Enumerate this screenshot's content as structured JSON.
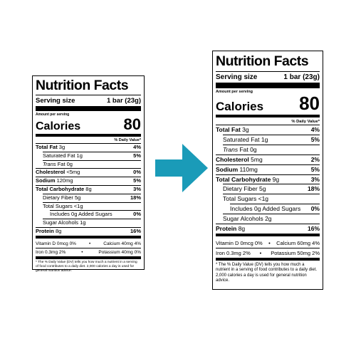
{
  "arrow_color": "#1a9bb8",
  "labels": {
    "old": {
      "title": "Nutrition Facts",
      "serving_label": "Serving size",
      "serving_value": "1 bar (23g)",
      "amount_per_serving": "Amount per serving",
      "calories_label": "Calories",
      "calories_value": "80",
      "dv_header": "% Daily Value*",
      "rows": [
        {
          "bold": "Total Fat",
          "amount": "3g",
          "pct": "4%"
        },
        {
          "bold": "",
          "amount": "Saturated Fat 1g",
          "pct": "5%"
        },
        {
          "italic": "Trans",
          "amount": "Fat 0g",
          "pct": ""
        },
        {
          "bold": "Cholesterol",
          "amount": "<5mg",
          "pct": "0%"
        },
        {
          "bold": "Sodium",
          "amount": "120mg",
          "pct": "5%"
        },
        {
          "bold": "Total Carbohydrate",
          "amount": "8g",
          "pct": "3%"
        },
        {
          "bold": "",
          "amount": "Dietary Fiber 5g",
          "pct": "18%"
        },
        {
          "bold": "",
          "amount": "Total Sugars <1g",
          "pct": ""
        },
        {
          "bold": "",
          "amount": "Includes 0g Added Sugars",
          "pct": "0%"
        },
        {
          "bold": "",
          "amount": "Sugar Alcohols 1g",
          "pct": ""
        },
        {
          "bold": "Protein",
          "amount": "8g",
          "pct": "16%"
        }
      ],
      "vitamins": [
        {
          "left": "Vitamin D 0mcg 0%",
          "right": "Calcium 40mg 4%"
        },
        {
          "left": "Iron 0.3mg 2%",
          "right": "Potassium 40mg 0%"
        }
      ],
      "footnote": "* The % Daily Value (DV) tells you how much a nutrient in a serving of food contributes to a daily diet. 2,000 calories a day is used for general nutrition advice."
    },
    "new": {
      "title": "Nutrition Facts",
      "serving_label": "Serving size",
      "serving_value": "1 bar (23g)",
      "amount_per_serving": "Amount per serving",
      "calories_label": "Calories",
      "calories_value": "80",
      "dv_header": "% Daily Value*",
      "rows": [
        {
          "bold": "Total Fat",
          "amount": "3g",
          "pct": "4%"
        },
        {
          "bold": "",
          "amount": "Saturated Fat 1g",
          "pct": "5%"
        },
        {
          "italic": "Trans",
          "amount": "Fat 0g",
          "pct": ""
        },
        {
          "bold": "Cholesterol",
          "amount": "5mg",
          "pct": "2%"
        },
        {
          "bold": "Sodium",
          "amount": "110mg",
          "pct": "5%"
        },
        {
          "bold": "Total Carbohydrate",
          "amount": "9g",
          "pct": "3%"
        },
        {
          "bold": "",
          "amount": "Dietary Fiber 5g",
          "pct": "18%"
        },
        {
          "bold": "",
          "amount": "Total Sugars <1g",
          "pct": ""
        },
        {
          "bold": "",
          "amount": "Includes 0g Added Sugars",
          "pct": "0%"
        },
        {
          "bold": "",
          "amount": "Sugar Alcohols 2g",
          "pct": ""
        },
        {
          "bold": "Protein",
          "amount": "8g",
          "pct": "16%"
        }
      ],
      "vitamins": [
        {
          "left": "Vitamin D 0mcg 0%",
          "right": "Calcium 60mg 4%"
        },
        {
          "left": "Iron 0.3mg 2%",
          "right": "Potassium 50mg 2%"
        }
      ],
      "footnote": "* The % Daily Value (DV) tells you how much a nutrient in a serving of food contributes to a daily diet. 2,000 calories a day is used for general nutrition advice."
    }
  }
}
